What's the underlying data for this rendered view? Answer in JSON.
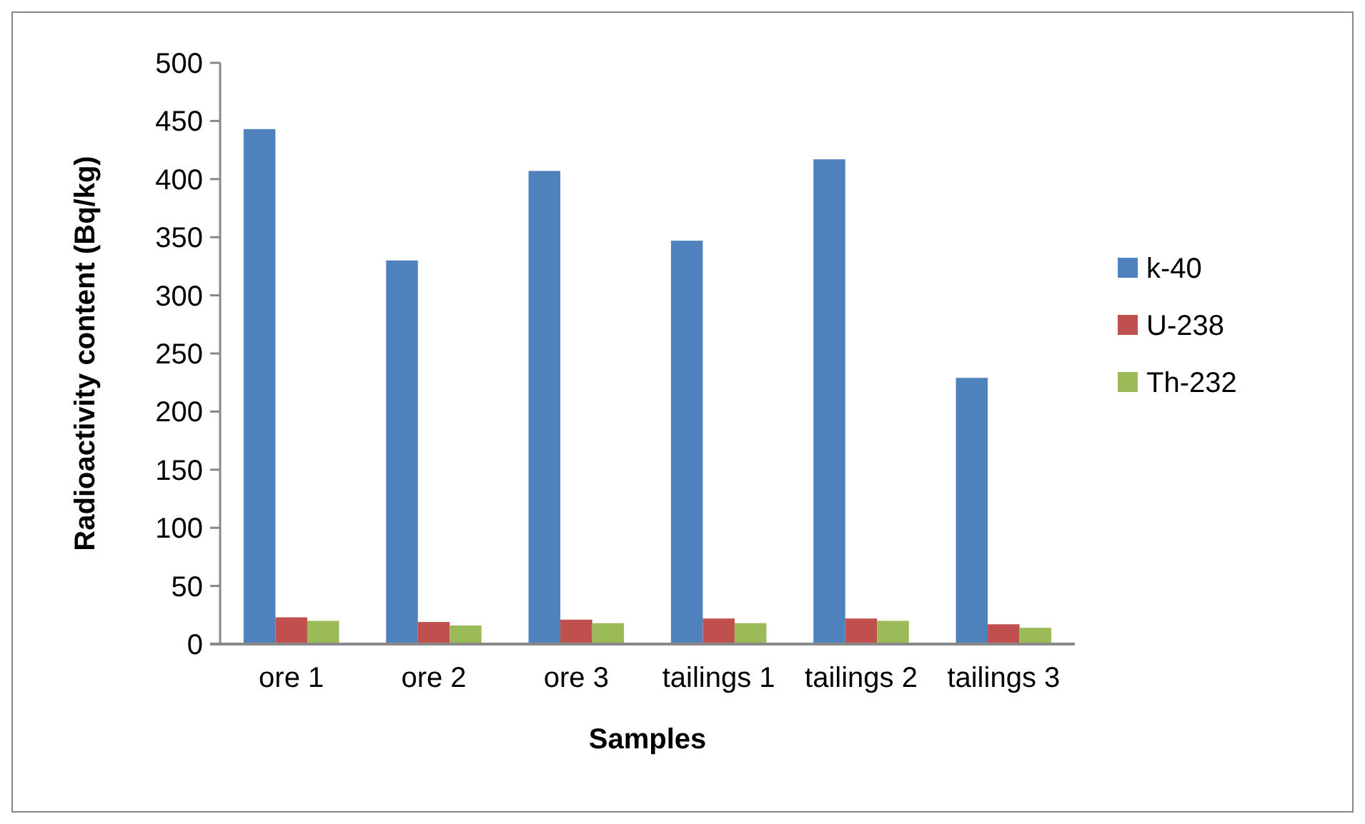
{
  "chart_data": {
    "type": "bar",
    "xlabel": "Samples",
    "ylabel": "Radioactivity content (Bq/kg)",
    "categories": [
      "ore 1",
      "ore 2",
      "ore 3",
      "tailings 1",
      "tailings 2",
      "tailings 3"
    ],
    "series": [
      {
        "name": "k-40",
        "color": "#4f81bd",
        "values": [
          443,
          330,
          407,
          347,
          417,
          229
        ]
      },
      {
        "name": "U-238",
        "color": "#c0504d",
        "values": [
          23,
          19,
          21,
          22,
          22,
          17
        ]
      },
      {
        "name": "Th-232",
        "color": "#9bbb59",
        "values": [
          20,
          16,
          18,
          18,
          20,
          14
        ]
      }
    ],
    "ylim": [
      0,
      500
    ],
    "yticks": [
      0,
      50,
      100,
      150,
      200,
      250,
      300,
      350,
      400,
      450,
      500
    ],
    "grid": false,
    "legend": "right"
  }
}
